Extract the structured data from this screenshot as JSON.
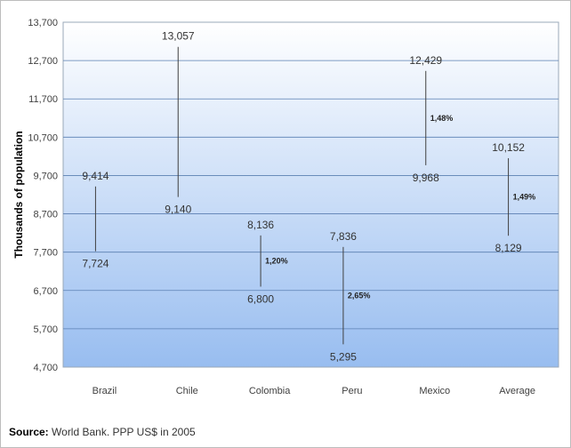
{
  "chart_data": {
    "type": "range",
    "ylabel": "Thousands of population",
    "ylim": [
      4700,
      13700
    ],
    "yticks": [
      4700,
      5700,
      6700,
      7700,
      8700,
      9700,
      10700,
      11700,
      12700,
      13700
    ],
    "ytick_labels": [
      "4,700",
      "5,700",
      "6,700",
      "7,700",
      "8,700",
      "9,700",
      "10,700",
      "11,700",
      "12,700",
      "13,700"
    ],
    "grid": true,
    "categories": [
      "Brazil",
      "Chile",
      "Colombia",
      "Peru",
      "Mexico",
      "Average"
    ],
    "series": [
      {
        "high": 9414,
        "low": 7724,
        "high_label": "9,414",
        "low_label": "7,724",
        "pct_label": ""
      },
      {
        "high": 13057,
        "low": 9140,
        "high_label": "13,057",
        "low_label": "9,140",
        "pct_label": ""
      },
      {
        "high": 8136,
        "low": 6800,
        "high_label": "8,136",
        "low_label": "6,800",
        "pct_label": "1,20%"
      },
      {
        "high": 7836,
        "low": 5295,
        "high_label": "7,836",
        "low_label": "5,295",
        "pct_label": "2,65%"
      },
      {
        "high": 12429,
        "low": 9968,
        "high_label": "12,429",
        "low_label": "9,968",
        "pct_label": "1,48%"
      },
      {
        "high": 10152,
        "low": 8129,
        "high_label": "10,152",
        "low_label": "8,129",
        "pct_label": "1,49%"
      }
    ],
    "colors": {
      "plot_top": "#ffffff",
      "plot_bottom": "#98bdf0",
      "grid": "#5a7fb2",
      "line": "#404040"
    }
  },
  "source": {
    "label": "Source:",
    "text": "World Bank. PPP US$ in 2005"
  }
}
